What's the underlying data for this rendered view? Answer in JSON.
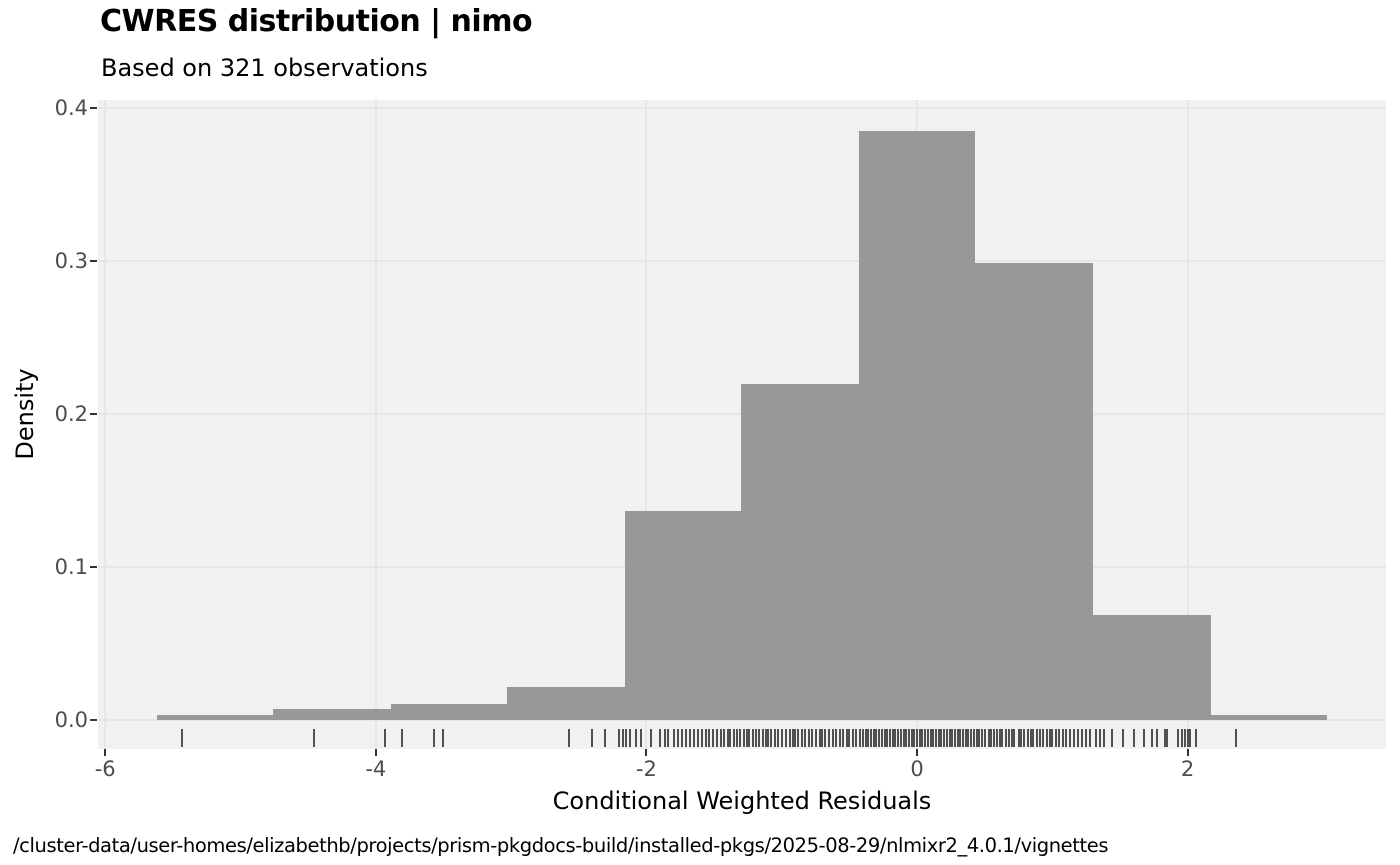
{
  "header": {
    "title": "CWRES distribution | nimo",
    "subtitle": "Based on 321 observations"
  },
  "footer": {
    "path": "/cluster-data/user-homes/elizabethb/projects/prism-pkgdocs-build/installed-pkgs/2025-08-29/nlmixr2_4.0.1/vignettes"
  },
  "chart_data": {
    "type": "bar",
    "variant": "histogram-with-rug",
    "title": "CWRES distribution | nimo",
    "subtitle": "Based on 321 observations",
    "xlabel": "Conditional Weighted Residuals",
    "ylabel": "Density",
    "n_observations": 321,
    "bin_width": 0.8655,
    "bin_edges": [
      -5.62,
      -4.76,
      -3.89,
      -3.03,
      -2.16,
      -1.3,
      -0.43,
      0.43,
      1.3,
      2.17,
      3.03
    ],
    "bin_counts": [
      1,
      2,
      3,
      6,
      38,
      61,
      107,
      83,
      19,
      1
    ],
    "densities": [
      0.0036,
      0.0072,
      0.0108,
      0.0216,
      0.1368,
      0.2196,
      0.3852,
      0.2988,
      0.0684,
      0.0036
    ],
    "x_ticks": [
      -6,
      -4,
      -2,
      0,
      2
    ],
    "x_tick_labels": [
      "-6",
      "-4",
      "-2",
      "0",
      "2"
    ],
    "y_ticks": [
      0.0,
      0.1,
      0.2,
      0.3,
      0.4
    ],
    "y_tick_labels": [
      "0.0",
      "0.1",
      "0.2",
      "0.3",
      "0.4"
    ],
    "xlim": [
      -6.06,
      3.47
    ],
    "ylim": [
      0,
      0.405
    ],
    "grid": "major",
    "legend": "none",
    "colors": {
      "bar": "#989898",
      "panel_background": "#F1F1F1",
      "gridline": "#E6E6E6",
      "tick_text": "#4D4D4D",
      "rug": "#232323",
      "title_text": "#000000"
    },
    "rug_x": [
      -5.43,
      -4.46,
      -3.93,
      -3.81,
      -3.57,
      -3.5,
      -2.57,
      -2.4,
      -2.31,
      -2.2,
      -2.17,
      -2.15,
      -2.12,
      -2.08,
      -2.04,
      -1.97,
      -1.9,
      -1.86,
      -1.84,
      -1.8,
      -1.77,
      -1.74,
      -1.71,
      -1.68,
      -1.65,
      -1.62,
      -1.59,
      -1.56,
      -1.54,
      -1.51,
      -1.48,
      -1.45,
      -1.43,
      -1.4,
      -1.38,
      -1.35,
      -1.33,
      -1.31,
      -1.28,
      -1.26,
      -1.24,
      -1.21,
      -1.19,
      -1.17,
      -1.14,
      -1.12,
      -1.1,
      -1.08,
      -1.05,
      -1.03,
      -1.0,
      -0.97,
      -0.94,
      -0.92,
      -0.9,
      -0.88,
      -0.85,
      -0.83,
      -0.8,
      -0.78,
      -0.75,
      -0.72,
      -0.7,
      -0.68,
      -0.65,
      -0.62,
      -0.6,
      -0.57,
      -0.55,
      -0.52,
      -0.5,
      -0.47,
      -0.45,
      -0.42,
      -0.4,
      -0.38,
      -0.36,
      -0.34,
      -0.32,
      -0.3,
      -0.28,
      -0.26,
      -0.24,
      -0.22,
      -0.2,
      -0.18,
      -0.16,
      -0.14,
      -0.12,
      -0.1,
      -0.08,
      -0.06,
      -0.04,
      -0.02,
      0.0,
      0.02,
      0.04,
      0.06,
      0.08,
      0.1,
      0.12,
      0.14,
      0.16,
      0.18,
      0.2,
      0.22,
      0.24,
      0.26,
      0.28,
      0.3,
      0.32,
      0.34,
      0.36,
      0.38,
      0.4,
      0.42,
      0.44,
      0.46,
      0.48,
      0.5,
      0.53,
      0.55,
      0.57,
      0.59,
      0.61,
      0.63,
      0.66,
      0.68,
      0.7,
      0.72,
      0.75,
      0.77,
      0.79,
      0.82,
      0.84,
      0.86,
      0.89,
      0.91,
      0.93,
      0.96,
      0.98,
      1.0,
      1.03,
      1.05,
      1.08,
      1.1,
      1.13,
      1.16,
      1.19,
      1.22,
      1.25,
      1.28,
      1.32,
      1.35,
      1.38,
      1.44,
      1.52,
      1.6,
      1.68,
      1.74,
      1.77,
      1.83,
      1.85,
      1.93,
      1.96,
      1.98,
      2.0,
      2.02,
      2.06,
      2.36
    ]
  }
}
